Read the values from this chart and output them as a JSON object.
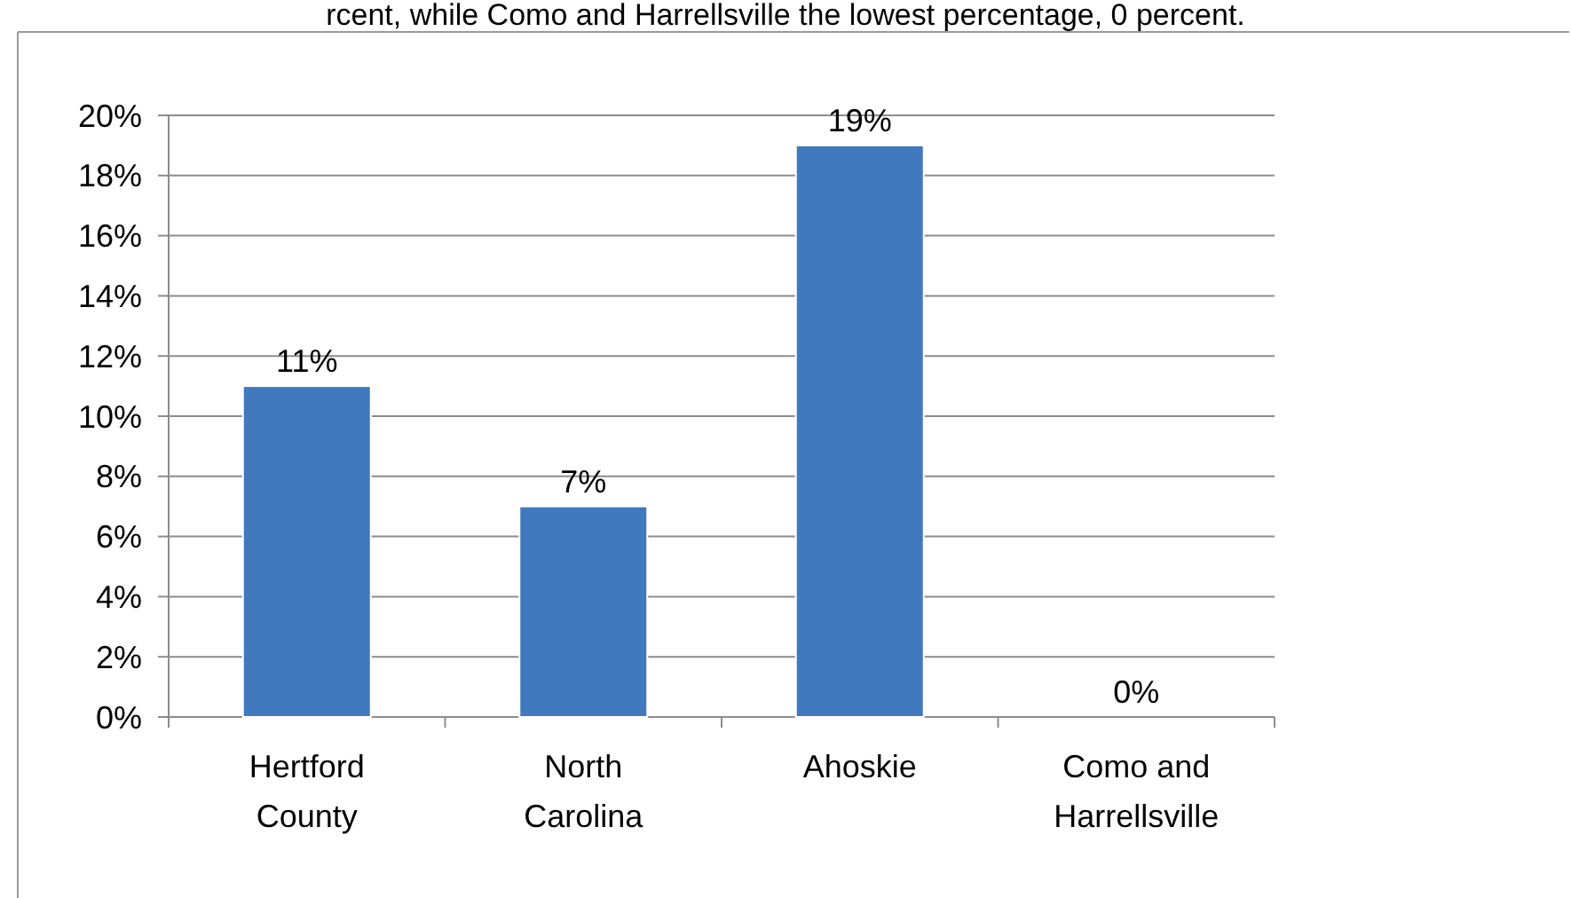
{
  "chart_data": {
    "type": "bar",
    "categories": [
      "Hertford County",
      "North Carolina",
      "Ahoskie",
      "Como and Harrellsville"
    ],
    "values": [
      11,
      7,
      19,
      0
    ],
    "value_labels": [
      "11%",
      "7%",
      "19%",
      "0%"
    ],
    "color": "#4079bd",
    "ylim": [
      0,
      20
    ],
    "yticks": [
      {
        "value": 0,
        "label": "0%"
      },
      {
        "value": 2,
        "label": "2%"
      },
      {
        "value": 4,
        "label": "4%"
      },
      {
        "value": 6,
        "label": "6%"
      },
      {
        "value": 8,
        "label": "8%"
      },
      {
        "value": 10,
        "label": "10%"
      },
      {
        "value": 12,
        "label": "12%"
      },
      {
        "value": 14,
        "label": "14%"
      },
      {
        "value": 16,
        "label": "16%"
      },
      {
        "value": 18,
        "label": "18%"
      },
      {
        "value": 20,
        "label": "20%"
      }
    ],
    "grid": "y",
    "annotations": [
      "rcent, while Como and Harrellsville the lowest percentage, 0 percent."
    ]
  }
}
